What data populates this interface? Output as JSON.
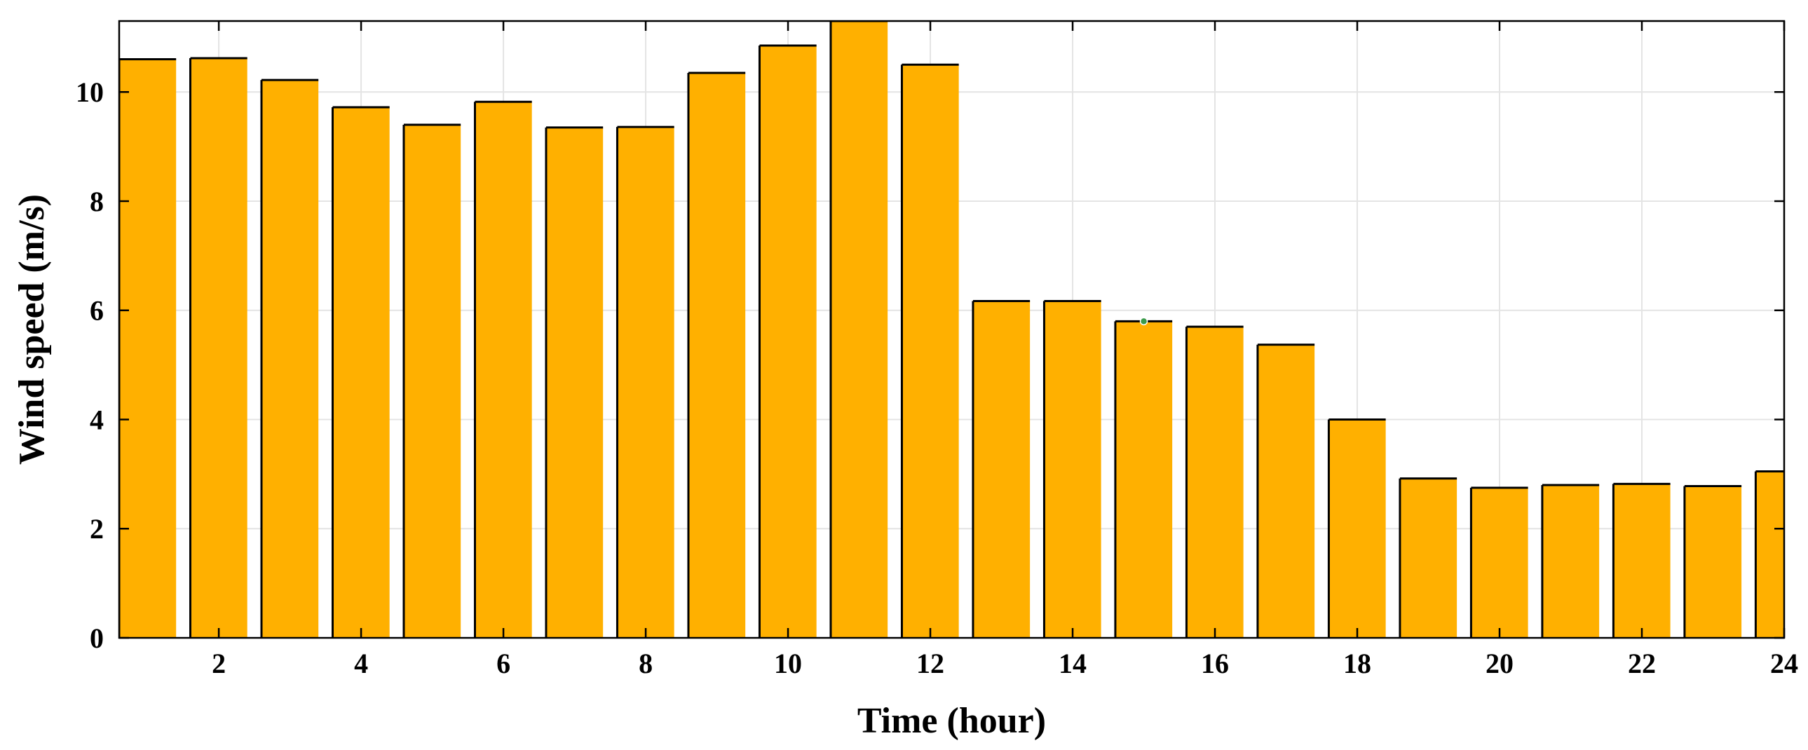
{
  "chart_data": {
    "type": "bar",
    "title": "",
    "xlabel": "Time (hour)",
    "ylabel": "Wind speed (m/s)",
    "x": [
      1,
      2,
      3,
      4,
      5,
      6,
      7,
      8,
      9,
      10,
      11,
      12,
      13,
      14,
      15,
      16,
      17,
      18,
      19,
      20,
      21,
      22,
      23,
      24
    ],
    "values": [
      10.6,
      10.62,
      10.22,
      9.72,
      9.4,
      9.82,
      9.35,
      9.36,
      10.35,
      10.85,
      11.3,
      10.5,
      6.17,
      6.17,
      5.8,
      5.7,
      5.37,
      4.0,
      2.92,
      2.75,
      2.8,
      2.82,
      2.78,
      3.05
    ],
    "xlim": [
      0.6,
      24
    ],
    "ylim": [
      0,
      11.3
    ],
    "xticks": [
      2,
      4,
      6,
      8,
      10,
      12,
      14,
      16,
      18,
      20,
      22,
      24
    ],
    "yticks": [
      0,
      2,
      4,
      6,
      8,
      10
    ],
    "grid": true,
    "legend": "none",
    "bar_color": "#FFB000",
    "edge_color": "#000000",
    "marker_color": "#3A9A4A"
  }
}
